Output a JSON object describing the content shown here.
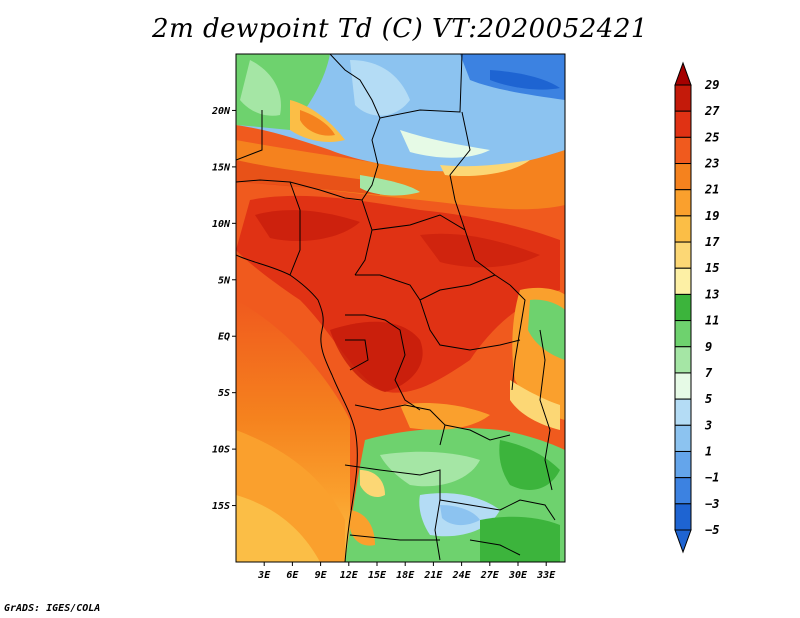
{
  "title": "2m dewpoint Td (C) VT:2020052421",
  "footer": "GrADS: IGES/COLA",
  "map": {
    "lat_range": [
      -20,
      25
    ],
    "lon_range": [
      0,
      35
    ],
    "lat_ticks": [
      {
        "value": 20,
        "label": "20N"
      },
      {
        "value": 15,
        "label": "15N"
      },
      {
        "value": 10,
        "label": "10N"
      },
      {
        "value": 5,
        "label": "5N"
      },
      {
        "value": 0,
        "label": "EQ"
      },
      {
        "value": -5,
        "label": "5S"
      },
      {
        "value": -10,
        "label": "10S"
      },
      {
        "value": -15,
        "label": "15S"
      }
    ],
    "lon_ticks": [
      {
        "value": 3,
        "label": "3E"
      },
      {
        "value": 6,
        "label": "6E"
      },
      {
        "value": 9,
        "label": "9E"
      },
      {
        "value": 12,
        "label": "12E"
      },
      {
        "value": 15,
        "label": "15E"
      },
      {
        "value": 18,
        "label": "18E"
      },
      {
        "value": 21,
        "label": "21E"
      },
      {
        "value": 24,
        "label": "24E"
      },
      {
        "value": 27,
        "label": "27E"
      },
      {
        "value": 30,
        "label": "30E"
      },
      {
        "value": 33,
        "label": "33E"
      }
    ]
  },
  "colorbar": {
    "levels": [
      {
        "label": "29",
        "color": "#a50000"
      },
      {
        "label": "27",
        "color": "#c41a0a"
      },
      {
        "label": "25",
        "color": "#e03214"
      },
      {
        "label": "23",
        "color": "#f05a1e"
      },
      {
        "label": "21",
        "color": "#f5821e"
      },
      {
        "label": "19",
        "color": "#faa02d"
      },
      {
        "label": "17",
        "color": "#fbbe46"
      },
      {
        "label": "15",
        "color": "#fcd775"
      },
      {
        "label": "13",
        "color": "#fdf0a5"
      },
      {
        "label": "11",
        "color": "#3cb43c"
      },
      {
        "label": "9",
        "color": "#6ed26e"
      },
      {
        "label": "7",
        "color": "#a5e6a5"
      },
      {
        "label": "5",
        "color": "#e6fae6"
      },
      {
        "label": "3",
        "color": "#b4dcf5"
      },
      {
        "label": "1",
        "color": "#8cc3f0"
      },
      {
        "label": "−1",
        "color": "#64a5eb"
      },
      {
        "label": "−3",
        "color": "#3c82e1"
      },
      {
        "label": "−5",
        "color": "#1e64d2"
      }
    ],
    "top_color": "#a50000",
    "bottom_color": "#1e64d2"
  }
}
